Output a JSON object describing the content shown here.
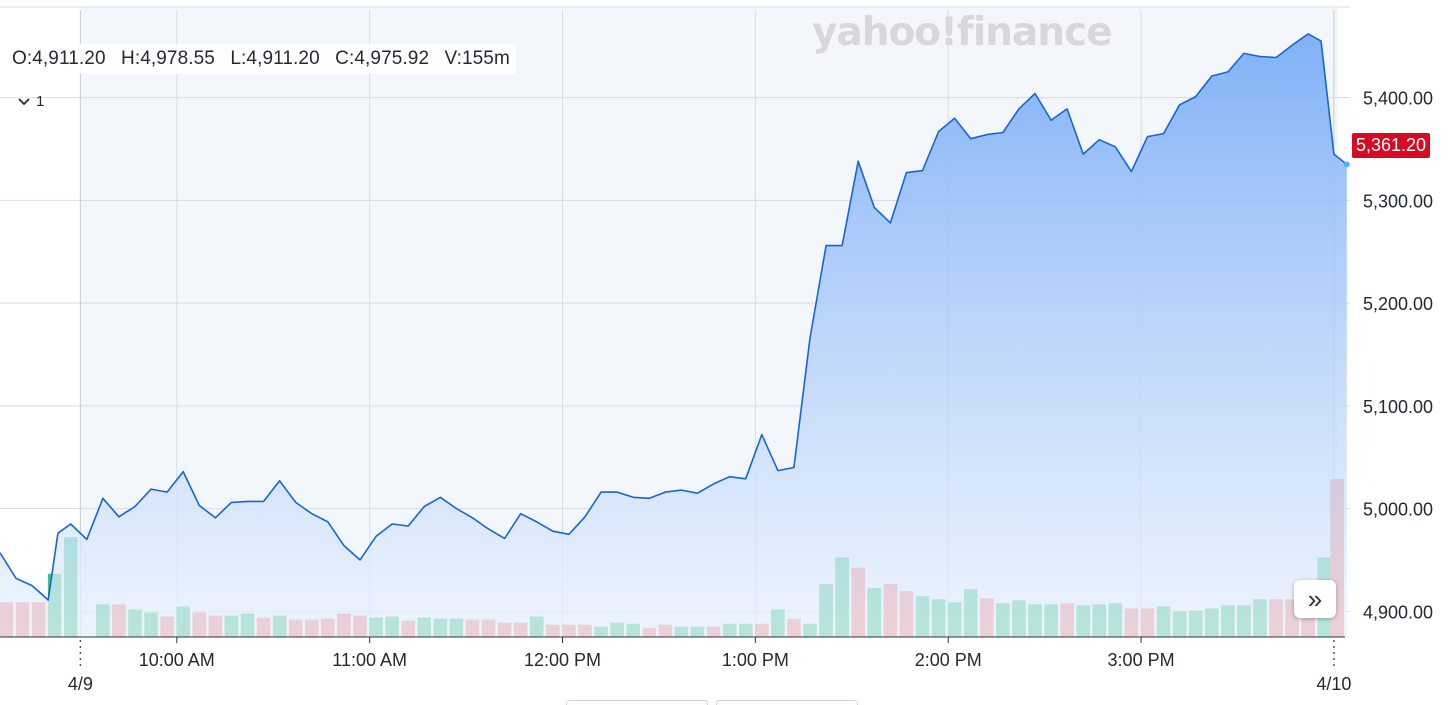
{
  "ohlc": {
    "open": "O:4,911.20",
    "high": "H:4,978.55",
    "low": "L:4,911.20",
    "close": "C:4,975.92",
    "volume": "V:155m"
  },
  "indicator_toggle": "1",
  "watermark": "yahoo!finance",
  "current_price_label": "5,361.20",
  "colors": {
    "line": "#1a64d6",
    "fill_top": "#7aadf7",
    "fill_bottom": "#eaf2fd",
    "vol_up": "#3fc489",
    "vol_down": "#f0827d",
    "price_tag": "#d60a22",
    "grid": "#d9dde2",
    "plot_bg": "#f3f7fb"
  },
  "chart_data": {
    "type": "area",
    "y_ticks": [
      "4,900.00",
      "5,000.00",
      "5,100.00",
      "5,200.00",
      "5,300.00",
      "5,400.00"
    ],
    "y_tick_values": [
      4900,
      5000,
      5100,
      5200,
      5300,
      5400
    ],
    "ylim": [
      4875,
      5495
    ],
    "x_ticks": [
      "10:00 AM",
      "11:00 AM",
      "12:00 PM",
      "1:00 PM",
      "2:00 PM",
      "3:00 PM"
    ],
    "x_tick_minutes": [
      30,
      90,
      150,
      210,
      270,
      330
    ],
    "date_labels": [
      {
        "label": "4/9",
        "minute": 0
      },
      {
        "label": "4/10",
        "minute": 390
      }
    ],
    "xlim": [
      -25,
      395
    ],
    "price": [
      [
        -25,
        4957
      ],
      [
        -20,
        4932
      ],
      [
        -15,
        4925
      ],
      [
        -10,
        4911
      ],
      [
        -7,
        4976
      ],
      [
        -3,
        4985
      ],
      [
        2,
        4970
      ],
      [
        7,
        5010
      ],
      [
        12,
        4992
      ],
      [
        17,
        5002
      ],
      [
        22,
        5019
      ],
      [
        27,
        5016
      ],
      [
        32,
        5036
      ],
      [
        37,
        5003
      ],
      [
        42,
        4991
      ],
      [
        47,
        5006
      ],
      [
        52,
        5007
      ],
      [
        57,
        5007
      ],
      [
        62,
        5027
      ],
      [
        67,
        5006
      ],
      [
        72,
        4995
      ],
      [
        77,
        4987
      ],
      [
        82,
        4964
      ],
      [
        87,
        4950
      ],
      [
        92,
        4973
      ],
      [
        97,
        4985
      ],
      [
        102,
        4983
      ],
      [
        107,
        5002
      ],
      [
        112,
        5011
      ],
      [
        117,
        5000
      ],
      [
        122,
        4991
      ],
      [
        127,
        4980
      ],
      [
        132,
        4971
      ],
      [
        137,
        4995
      ],
      [
        142,
        4987
      ],
      [
        147,
        4978
      ],
      [
        152,
        4975
      ],
      [
        157,
        4992
      ],
      [
        162,
        5016
      ],
      [
        167,
        5016
      ],
      [
        172,
        5011
      ],
      [
        177,
        5010
      ],
      [
        182,
        5016
      ],
      [
        187,
        5018
      ],
      [
        192,
        5015
      ],
      [
        197,
        5024
      ],
      [
        202,
        5031
      ],
      [
        207,
        5029
      ],
      [
        212,
        5072
      ],
      [
        217,
        5037
      ],
      [
        222,
        5040
      ],
      [
        227,
        5166
      ],
      [
        232,
        5256
      ],
      [
        237,
        5256
      ],
      [
        242,
        5338
      ],
      [
        247,
        5293
      ],
      [
        252,
        5278
      ],
      [
        257,
        5327
      ],
      [
        262,
        5329
      ],
      [
        267,
        5367
      ],
      [
        272,
        5380
      ],
      [
        277,
        5360
      ],
      [
        282,
        5364
      ],
      [
        287,
        5366
      ],
      [
        292,
        5389
      ],
      [
        297,
        5404
      ],
      [
        302,
        5378
      ],
      [
        307,
        5389
      ],
      [
        312,
        5345
      ],
      [
        317,
        5359
      ],
      [
        322,
        5352
      ],
      [
        327,
        5328
      ],
      [
        332,
        5362
      ],
      [
        337,
        5365
      ],
      [
        342,
        5393
      ],
      [
        347,
        5401
      ],
      [
        352,
        5421
      ],
      [
        357,
        5425
      ],
      [
        362,
        5443
      ],
      [
        367,
        5440
      ],
      [
        372,
        5439
      ],
      [
        377,
        5451
      ],
      [
        382,
        5462
      ],
      [
        386,
        5455
      ],
      [
        390,
        5345
      ],
      [
        394,
        5335
      ]
    ],
    "volume": [
      {
        "t": -23,
        "v": 34,
        "up": false
      },
      {
        "t": -18,
        "v": 34,
        "up": false
      },
      {
        "t": -13,
        "v": 34,
        "up": false
      },
      {
        "t": -8,
        "v": 62,
        "up": true
      },
      {
        "t": -3,
        "v": 98,
        "up": true
      },
      {
        "t": 7,
        "v": 32,
        "up": true
      },
      {
        "t": 12,
        "v": 32,
        "up": false
      },
      {
        "t": 17,
        "v": 27,
        "up": true
      },
      {
        "t": 22,
        "v": 24,
        "up": true
      },
      {
        "t": 27,
        "v": 20,
        "up": false
      },
      {
        "t": 32,
        "v": 30,
        "up": true
      },
      {
        "t": 37,
        "v": 24,
        "up": false
      },
      {
        "t": 42,
        "v": 21,
        "up": false
      },
      {
        "t": 47,
        "v": 21,
        "up": true
      },
      {
        "t": 52,
        "v": 23,
        "up": true
      },
      {
        "t": 57,
        "v": 19,
        "up": false
      },
      {
        "t": 62,
        "v": 21,
        "up": true
      },
      {
        "t": 67,
        "v": 17,
        "up": false
      },
      {
        "t": 72,
        "v": 17,
        "up": false
      },
      {
        "t": 77,
        "v": 18,
        "up": false
      },
      {
        "t": 82,
        "v": 23,
        "up": false
      },
      {
        "t": 87,
        "v": 21,
        "up": false
      },
      {
        "t": 92,
        "v": 19,
        "up": true
      },
      {
        "t": 97,
        "v": 20,
        "up": true
      },
      {
        "t": 102,
        "v": 16,
        "up": false
      },
      {
        "t": 107,
        "v": 19,
        "up": true
      },
      {
        "t": 112,
        "v": 18,
        "up": true
      },
      {
        "t": 117,
        "v": 18,
        "up": true
      },
      {
        "t": 122,
        "v": 17,
        "up": false
      },
      {
        "t": 127,
        "v": 17,
        "up": false
      },
      {
        "t": 132,
        "v": 14,
        "up": false
      },
      {
        "t": 137,
        "v": 14,
        "up": false
      },
      {
        "t": 142,
        "v": 20,
        "up": true
      },
      {
        "t": 147,
        "v": 12,
        "up": false
      },
      {
        "t": 152,
        "v": 12,
        "up": false
      },
      {
        "t": 157,
        "v": 12,
        "up": false
      },
      {
        "t": 162,
        "v": 10,
        "up": true
      },
      {
        "t": 167,
        "v": 14,
        "up": true
      },
      {
        "t": 172,
        "v": 13,
        "up": true
      },
      {
        "t": 177,
        "v": 9,
        "up": false
      },
      {
        "t": 182,
        "v": 12,
        "up": false
      },
      {
        "t": 187,
        "v": 10,
        "up": true
      },
      {
        "t": 192,
        "v": 10,
        "up": true
      },
      {
        "t": 197,
        "v": 10,
        "up": false
      },
      {
        "t": 202,
        "v": 13,
        "up": true
      },
      {
        "t": 207,
        "v": 13,
        "up": true
      },
      {
        "t": 212,
        "v": 13,
        "up": false
      },
      {
        "t": 217,
        "v": 27,
        "up": true
      },
      {
        "t": 222,
        "v": 18,
        "up": false
      },
      {
        "t": 227,
        "v": 13,
        "up": true
      },
      {
        "t": 232,
        "v": 52,
        "up": true
      },
      {
        "t": 237,
        "v": 78,
        "up": true
      },
      {
        "t": 242,
        "v": 68,
        "up": false
      },
      {
        "t": 247,
        "v": 48,
        "up": true
      },
      {
        "t": 252,
        "v": 52,
        "up": false
      },
      {
        "t": 257,
        "v": 45,
        "up": false
      },
      {
        "t": 262,
        "v": 40,
        "up": true
      },
      {
        "t": 267,
        "v": 37,
        "up": true
      },
      {
        "t": 272,
        "v": 34,
        "up": true
      },
      {
        "t": 277,
        "v": 47,
        "up": true
      },
      {
        "t": 282,
        "v": 38,
        "up": false
      },
      {
        "t": 287,
        "v": 33,
        "up": true
      },
      {
        "t": 292,
        "v": 36,
        "up": true
      },
      {
        "t": 297,
        "v": 32,
        "up": true
      },
      {
        "t": 302,
        "v": 32,
        "up": true
      },
      {
        "t": 307,
        "v": 33,
        "up": false
      },
      {
        "t": 312,
        "v": 31,
        "up": true
      },
      {
        "t": 317,
        "v": 32,
        "up": true
      },
      {
        "t": 322,
        "v": 33,
        "up": true
      },
      {
        "t": 327,
        "v": 28,
        "up": false
      },
      {
        "t": 332,
        "v": 28,
        "up": false
      },
      {
        "t": 337,
        "v": 30,
        "up": true
      },
      {
        "t": 342,
        "v": 25,
        "up": true
      },
      {
        "t": 347,
        "v": 26,
        "up": true
      },
      {
        "t": 352,
        "v": 28,
        "up": true
      },
      {
        "t": 357,
        "v": 31,
        "up": true
      },
      {
        "t": 362,
        "v": 31,
        "up": true
      },
      {
        "t": 367,
        "v": 37,
        "up": true
      },
      {
        "t": 372,
        "v": 37,
        "up": false
      },
      {
        "t": 377,
        "v": 37,
        "up": false
      },
      {
        "t": 382,
        "v": 37,
        "up": false
      },
      {
        "t": 387,
        "v": 78,
        "up": true
      },
      {
        "t": 391,
        "v": 155,
        "up": false
      }
    ],
    "grid": true
  }
}
